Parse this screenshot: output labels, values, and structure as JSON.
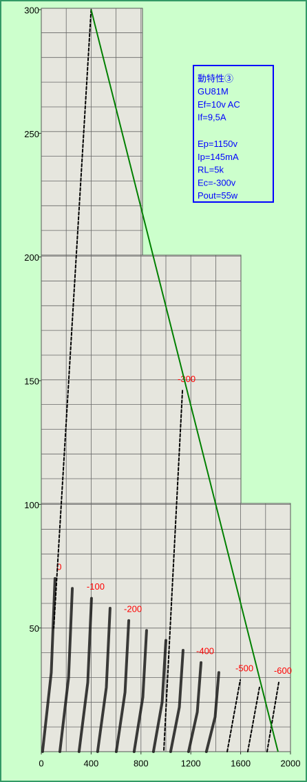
{
  "chart_data": {
    "type": "line",
    "info_box": [
      "動特性③",
      "GU81M",
      "Ef=10v AC",
      "If=9,5A",
      "Ep=1150v",
      "Ip=145mA",
      "RL=5k",
      "Ec=-300v",
      "Pout=55w"
    ],
    "xlim": [
      0,
      2000
    ],
    "xticks": [
      0,
      400,
      800,
      1200,
      1600,
      2000
    ],
    "ylim": [
      0,
      300
    ],
    "yticks": [
      50,
      100,
      150,
      200,
      250,
      300
    ],
    "load_line": {
      "color": "#008000",
      "x": [
        400,
        1900
      ],
      "values": [
        300,
        0
      ]
    },
    "label_color": "#ff0000",
    "series": [
      {
        "name": "0",
        "style": "solid",
        "color": "#1a1a1a",
        "x": [
          10,
          80,
          110
        ],
        "values": [
          0,
          32,
          70
        ]
      },
      {
        "style": "solid",
        "color": "#1a1a1a",
        "x": [
          149,
          219,
          249
        ],
        "values": [
          0,
          30,
          66
        ]
      },
      {
        "name": "-100",
        "style": "solid",
        "color": "#1a1a1a",
        "x": [
          303,
          373,
          403
        ],
        "values": [
          0,
          28,
          62
        ]
      },
      {
        "style": "solid",
        "color": "#1a1a1a",
        "x": [
          452,
          522,
          552
        ],
        "values": [
          0,
          26,
          58
        ]
      },
      {
        "name": "-200",
        "style": "solid",
        "color": "#1a1a1a",
        "x": [
          602,
          672,
          702
        ],
        "values": [
          0,
          24,
          53
        ]
      },
      {
        "style": "solid",
        "color": "#1a1a1a",
        "x": [
          745,
          815,
          845
        ],
        "values": [
          0,
          22,
          49
        ]
      },
      {
        "style": "solid",
        "color": "#1a1a1a",
        "x": [
          900,
          970,
          1000
        ],
        "values": [
          0,
          20,
          45
        ]
      },
      {
        "style": "solid",
        "color": "#1a1a1a",
        "x": [
          1038,
          1108,
          1138
        ],
        "values": [
          0,
          18,
          41
        ]
      },
      {
        "name": "-400",
        "style": "solid",
        "color": "#1a1a1a",
        "x": [
          1182,
          1252,
          1282
        ],
        "values": [
          0,
          16,
          36
        ]
      },
      {
        "style": "solid",
        "color": "#1a1a1a",
        "x": [
          1325,
          1395,
          1425
        ],
        "values": [
          0,
          14,
          32
        ]
      },
      {
        "style": "dashed",
        "color": "#000000",
        "x": [
          400,
          100
        ],
        "values": [
          300,
          50
        ]
      },
      {
        "name": "-300",
        "style": "dashed",
        "color": "#000000",
        "x": [
          1133,
          983
        ],
        "values": [
          146,
          0
        ]
      },
      {
        "name": "-500",
        "style": "dashed",
        "color": "#000000",
        "x": [
          1492,
          1597
        ],
        "values": [
          0,
          29
        ]
      },
      {
        "style": "dashed",
        "color": "#000000",
        "x": [
          1657,
          1751
        ],
        "values": [
          0,
          26
        ]
      },
      {
        "name": "-600",
        "style": "dashed",
        "color": "#000000",
        "x": [
          1812,
          1906
        ],
        "values": [
          0,
          28
        ]
      }
    ]
  }
}
